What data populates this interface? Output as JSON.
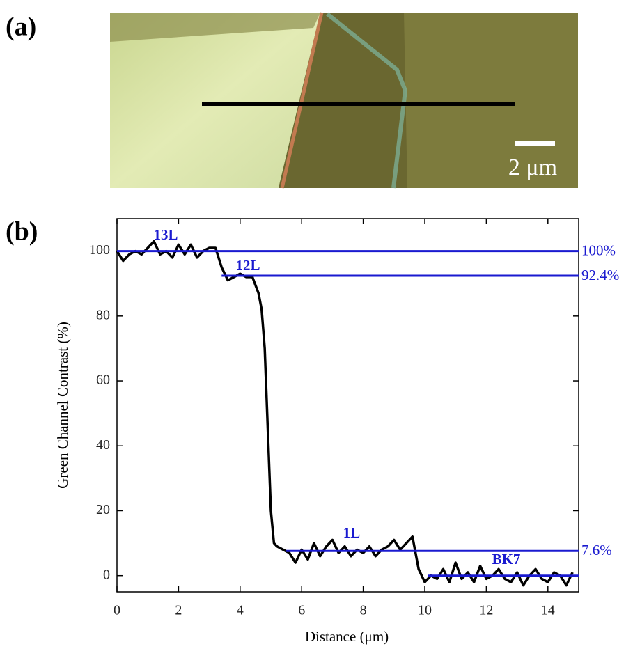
{
  "panel_a": {
    "label": "(a)",
    "scale_bar": "2 μm"
  },
  "chart_data": {
    "type": "line",
    "panel_label": "(b)",
    "x_label": "Distance (μm)",
    "y_label": "Green Channel Contrast (%)",
    "xlim": [
      0,
      15
    ],
    "ylim": [
      -5,
      110
    ],
    "xticks": [
      0,
      2,
      4,
      6,
      8,
      10,
      12,
      14
    ],
    "yticks": [
      0,
      20,
      40,
      60,
      80,
      100
    ],
    "series": [
      {
        "color": "#000000",
        "x": [
          0,
          0.2,
          0.4,
          0.6,
          0.8,
          1.0,
          1.2,
          1.4,
          1.6,
          1.8,
          2.0,
          2.2,
          2.4,
          2.6,
          2.8,
          3.0,
          3.2,
          3.4,
          3.6,
          3.8,
          4.0,
          4.2,
          4.4,
          4.6,
          4.7,
          4.8,
          4.9,
          5.0,
          5.1,
          5.2,
          5.4,
          5.6,
          5.8,
          6.0,
          6.2,
          6.4,
          6.6,
          6.8,
          7.0,
          7.2,
          7.4,
          7.6,
          7.8,
          8.0,
          8.2,
          8.4,
          8.6,
          8.8,
          9.0,
          9.2,
          9.4,
          9.6,
          9.8,
          10.0,
          10.2,
          10.4,
          10.6,
          10.8,
          11.0,
          11.2,
          11.4,
          11.6,
          11.8,
          12.0,
          12.2,
          12.4,
          12.6,
          12.8,
          13.0,
          13.2,
          13.4,
          13.6,
          13.8,
          14.0,
          14.2,
          14.4,
          14.6,
          14.8
        ],
        "values": [
          100,
          97,
          99,
          100,
          99,
          101,
          103,
          99,
          100,
          98,
          102,
          99,
          102,
          98,
          100,
          101,
          101,
          95,
          91,
          92,
          93,
          92,
          92,
          87,
          82,
          70,
          45,
          20,
          10,
          9,
          8,
          7,
          4,
          8,
          5,
          10,
          6,
          9,
          11,
          7,
          9,
          6,
          8,
          7,
          9,
          6,
          8,
          9,
          11,
          8,
          10,
          12,
          2,
          -2,
          0,
          -1,
          2,
          -2,
          4,
          -1,
          1,
          -2,
          3,
          -1,
          0,
          2,
          -1,
          -2,
          1,
          -3,
          0,
          2,
          -1,
          -2,
          1,
          0,
          -3,
          1
        ]
      }
    ],
    "reference_lines": [
      {
        "value": 100,
        "start": 0,
        "label": "100%"
      },
      {
        "value": 92.4,
        "start": 3.4,
        "label": "92.4%"
      },
      {
        "value": 7.6,
        "start": 5.5,
        "label": "7.6%"
      },
      {
        "value": 0,
        "start": 10.1
      }
    ],
    "reference_color": "#1a1ad0",
    "annotations": [
      "13L",
      "12L",
      "1L",
      "BK7"
    ]
  }
}
